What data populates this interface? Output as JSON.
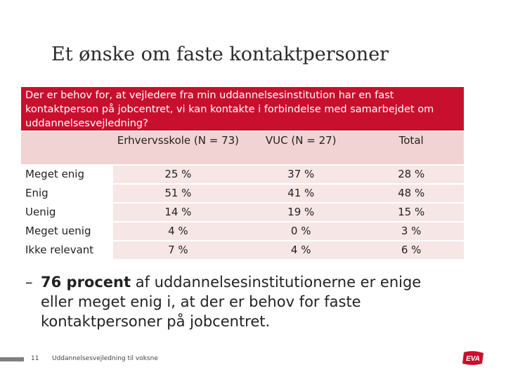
{
  "slide": {
    "title": "Et ønske om faste kontaktpersoner",
    "question": "Der er behov for, at vejledere fra min uddannelsesinstitution har en fast kontaktperson på jobcentret, vi kan kontakte i forbindelse med samarbejdet om uddannelsesvejledning?"
  },
  "table": {
    "headers": [
      "",
      "Erhvervsskole (N = 73)",
      "VUC (N = 27)",
      "Total"
    ],
    "rows": [
      {
        "label": "Meget enig",
        "values": [
          "25 %",
          "37 %",
          "28 %"
        ]
      },
      {
        "label": "Enig",
        "values": [
          "51 %",
          "41 %",
          "48 %"
        ]
      },
      {
        "label": "Uenig",
        "values": [
          "14 %",
          "19 %",
          "15 %"
        ]
      },
      {
        "label": "Meget uenig",
        "values": [
          "4 %",
          "0 %",
          "3 %"
        ]
      },
      {
        "label": "Ikke relevant",
        "values": [
          "7 %",
          "4 %",
          "6 %"
        ]
      }
    ]
  },
  "bullet": {
    "dash": "–",
    "strong": "76 procent",
    "line1": " af uddannelsesinstitutionerne er enige",
    "line2": "eller meget enig i,  at der er behov for faste",
    "line3": "kontaktpersoner på jobcentret."
  },
  "footer": {
    "page_number": "11",
    "text": "Uddannelsesvejledning til voksne",
    "logo_text": "EVA",
    "logo_color": "#c8102e",
    "bar_color": "#808080"
  },
  "colors": {
    "accent": "#c8102e",
    "header_fill": "#f2d3d3",
    "cell_fill": "#f7e6e6"
  }
}
